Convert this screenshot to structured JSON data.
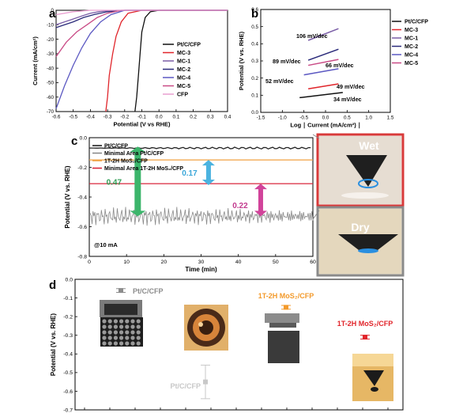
{
  "colors": {
    "ptc": "#111111",
    "mc3": "#e0252b",
    "mc1": "#7b5ea7",
    "mc2": "#2a2a7a",
    "mc4": "#5b58c2",
    "mc5": "#c94b86",
    "cfp": "#e99fd0",
    "line_ptc": "#222222",
    "line_min_pt": "#8a8a8a",
    "line_mos2": "#f0a040",
    "line_min_mos2": "#d8263c",
    "arrow_green": "#3cb56b",
    "arrow_blue": "#4bb3e0",
    "arrow_pink": "#d1439a",
    "txt_green": "#2f9e55",
    "txt_blue": "#3aa7d9",
    "txt_pink": "#c23a8e",
    "d_gray": "#8c8c8c",
    "d_orange": "#f39a2b",
    "d_red": "#e1252b",
    "d_light": "#c8c8c8",
    "photo_frame_red": "#d83a3a",
    "photo_frame_gray": "#8a8a8a"
  },
  "panels": {
    "a_label": "a",
    "b_label": "b",
    "c_label": "c",
    "d_label": "d"
  },
  "chart_data": [
    {
      "panel": "a",
      "type": "line",
      "xlabel": "Potential (V vs RHE)",
      "ylabel": "Current (mA/cm²)",
      "xlim": [
        -0.6,
        0.4
      ],
      "ylim": [
        -70,
        0
      ],
      "xticks": [
        "-0.6",
        "-0.5",
        "-0.4",
        "-0.3",
        "-0.2",
        "-0.1",
        "0.0",
        "0.1",
        "0.2",
        "0.3",
        "0.4"
      ],
      "yticks": [
        "0",
        "-10",
        "-20",
        "-30",
        "-40",
        "-50",
        "-60",
        "-70"
      ],
      "legend": {
        "position": "right",
        "entries": [
          "Pt/C/CFP",
          "MC-3",
          "MC-1",
          "MC-2",
          "MC-4",
          "MC-5",
          "CFP"
        ]
      },
      "series": [
        {
          "name": "Pt/C/CFP",
          "color": "#111111",
          "x": [
            0.0,
            -0.05,
            -0.08,
            -0.1,
            -0.11,
            -0.12,
            -0.13,
            -0.14
          ],
          "y": [
            0,
            -1,
            -5,
            -15,
            -30,
            -45,
            -60,
            -70
          ]
        },
        {
          "name": "MC-3",
          "color": "#e0252b",
          "x": [
            -0.1,
            -0.18,
            -0.22,
            -0.25,
            -0.27,
            -0.29,
            -0.3,
            -0.31
          ],
          "y": [
            0,
            -2,
            -8,
            -18,
            -30,
            -45,
            -60,
            -70
          ]
        },
        {
          "name": "MC-1",
          "color": "#7b5ea7",
          "x": [
            -0.25,
            -0.35,
            -0.4,
            -0.45,
            -0.5,
            -0.55,
            -0.6
          ],
          "y": [
            0,
            -1,
            -2,
            -4,
            -6,
            -8,
            -10
          ]
        },
        {
          "name": "MC-2",
          "color": "#2a2a7a",
          "x": [
            -0.2,
            -0.3,
            -0.38,
            -0.44,
            -0.5,
            -0.55,
            -0.6
          ],
          "y": [
            0,
            -1,
            -3,
            -5,
            -8,
            -10,
            -12
          ]
        },
        {
          "name": "MC-4",
          "color": "#5b58c2",
          "x": [
            -0.2,
            -0.28,
            -0.34,
            -0.4,
            -0.45,
            -0.5,
            -0.55,
            -0.6
          ],
          "y": [
            0,
            -3,
            -8,
            -16,
            -26,
            -38,
            -52,
            -68
          ]
        },
        {
          "name": "MC-5",
          "color": "#c94b86",
          "x": [
            -0.22,
            -0.3,
            -0.36,
            -0.42,
            -0.48,
            -0.54,
            -0.6
          ],
          "y": [
            0,
            -2,
            -5,
            -10,
            -15,
            -22,
            -32
          ]
        },
        {
          "name": "CFP",
          "color": "#e99fd0",
          "x": [
            -0.4,
            -0.5,
            -0.55,
            -0.6
          ],
          "y": [
            0,
            -1,
            -2,
            -3
          ]
        }
      ]
    },
    {
      "panel": "b",
      "type": "line",
      "xlabel": "Log ∣ Current (mA/cm²) ∣",
      "ylabel": "Potential (V vs. RHE)",
      "xlim": [
        -1.5,
        1.5
      ],
      "ylim": [
        -0.1,
        0.6
      ],
      "xticks": [
        "-1.5",
        "-1.0",
        "-0.5",
        "0.0",
        "0.5",
        "1.0",
        "1.5"
      ],
      "yticks": [
        "0.0",
        "0.1",
        "0.2",
        "0.3",
        "0.4",
        "0.5",
        "0.6"
      ],
      "legend": {
        "position": "right",
        "entries": [
          "Pt/C/CFP",
          "MC-3",
          "MC-1",
          "MC-2",
          "MC-4",
          "MC-5"
        ]
      },
      "annotations": [
        "106 mV/dec",
        "89 mV/dec",
        "66 mV/dec",
        "52 mV/dec",
        "49 mV/dec",
        "34 mV/dec"
      ],
      "series": [
        {
          "name": "Pt/C/CFP",
          "color": "#111111",
          "x": [
            -0.6,
            0.4
          ],
          "y": [
            0.0,
            0.035
          ]
        },
        {
          "name": "MC-3",
          "color": "#e0252b",
          "x": [
            -0.4,
            0.3
          ],
          "y": [
            0.06,
            0.094
          ]
        },
        {
          "name": "MC-1",
          "color": "#7b5ea7",
          "x": [
            -0.4,
            0.3
          ],
          "y": [
            0.39,
            0.47
          ]
        },
        {
          "name": "MC-2",
          "color": "#2a2a7a",
          "x": [
            -0.4,
            0.3
          ],
          "y": [
            0.255,
            0.33
          ]
        },
        {
          "name": "MC-4",
          "color": "#5b58c2",
          "x": [
            -0.5,
            0.3
          ],
          "y": [
            0.155,
            0.197
          ]
        },
        {
          "name": "MC-5",
          "color": "#c94b86",
          "x": [
            -0.4,
            0.3
          ],
          "y": [
            0.22,
            0.26
          ]
        }
      ]
    },
    {
      "panel": "c",
      "type": "line",
      "xlabel": "Time (min)",
      "ylabel": "Potential (V vs. RHE)",
      "xlim": [
        0,
        60
      ],
      "ylim": [
        -0.8,
        0.0
      ],
      "xticks": [
        "0",
        "10",
        "20",
        "30",
        "40",
        "50",
        "60"
      ],
      "yticks": [
        "0.0",
        "-0.2",
        "-0.4",
        "-0.6",
        "-0.8"
      ],
      "legend": {
        "position": "top-left",
        "entries": [
          "Pt/C/CFP",
          "Minimal Area Pt/C/CFP",
          "1T-2H MoS₂/CFP",
          "Minimal Area 1T-2H MoS₂/CFP"
        ]
      },
      "note": "@10 mA",
      "series": [
        {
          "name": "Pt/C/CFP",
          "color": "#222222",
          "x": [
            0,
            60
          ],
          "y": [
            -0.07,
            -0.07
          ]
        },
        {
          "name": "Minimal Area Pt/C/CFP",
          "color": "#8a8a8a",
          "x": [
            0,
            60
          ],
          "y": [
            -0.53,
            -0.53
          ]
        },
        {
          "name": "1T-2H MoS₂/CFP",
          "color": "#f0a040",
          "x": [
            0,
            60
          ],
          "y": [
            -0.15,
            -0.15
          ]
        },
        {
          "name": "Minimal Area 1T-2H MoS₂/CFP",
          "color": "#d8263c",
          "x": [
            0,
            60
          ],
          "y": [
            -0.31,
            -0.31
          ]
        }
      ],
      "differences": [
        {
          "label": "0.47",
          "x": 13,
          "from": -0.06,
          "to": -0.53
        },
        {
          "label": "0.17",
          "x": 32,
          "from": -0.15,
          "to": -0.32
        },
        {
          "label": "0.22",
          "x": 46,
          "from": -0.31,
          "to": -0.53
        }
      ],
      "photos": [
        "Wet",
        "Dry"
      ]
    },
    {
      "panel": "d",
      "type": "scatter",
      "ylabel": "Potential (V vs. RHE)",
      "ylim": [
        -0.7,
        0.0
      ],
      "yticks": [
        "0.0",
        "-0.1",
        "-0.2",
        "-0.3",
        "-0.4",
        "-0.5",
        "-0.6",
        "-0.7"
      ],
      "points": [
        {
          "label": "Pt/C/CFP",
          "color": "#8c8c8c",
          "y": -0.06,
          "err": 0.01
        },
        {
          "label": "Pt/C/CFP",
          "color": "#c8c8c8",
          "y": -0.55,
          "err": 0.09
        },
        {
          "label": "1T-2H MoS₂/CFP",
          "color": "#f39a2b",
          "y": -0.15,
          "err": 0.01
        },
        {
          "label": "1T-2H MoS₂/CFP",
          "color": "#e1252b",
          "y": -0.31,
          "err": 0.01
        }
      ]
    }
  ]
}
